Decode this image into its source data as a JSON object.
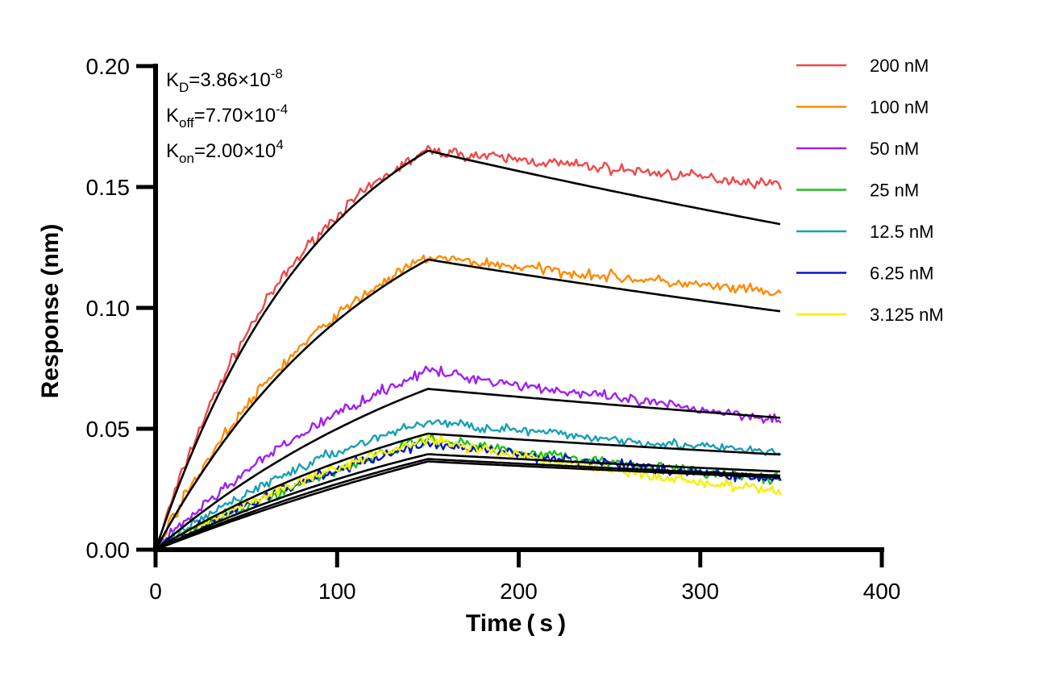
{
  "chart_data": {
    "type": "line",
    "xlabel": "Time ( s )",
    "ylabel": "Response (nm)",
    "xlim": [
      0,
      400
    ],
    "ylim": [
      0,
      0.2
    ],
    "x_ticks": [
      0,
      100,
      200,
      300,
      400
    ],
    "y_ticks": [
      0.0,
      0.05,
      0.1,
      0.15,
      0.2
    ],
    "x_tick_labels": [
      "0",
      "100",
      "200",
      "300",
      "400"
    ],
    "y_tick_labels": [
      "0.00",
      "0.05",
      "0.10",
      "0.15",
      "0.20"
    ],
    "legend_position": "top-right",
    "grid": false,
    "association_end_s": 150,
    "dissociation_end_s": 345,
    "annotations": [
      {
        "key": "KD",
        "base": "K",
        "sub": "D",
        "text": "=3.86×10",
        "sup": "-8"
      },
      {
        "key": "Koff",
        "base": "K",
        "sub": "off",
        "text": "=7.70×10",
        "sup": "-4"
      },
      {
        "key": "Kon",
        "base": "K",
        "sub": "on",
        "text": "=2.00×10",
        "sup": "4"
      }
    ],
    "fit_color": "#000000",
    "series": [
      {
        "name": "200 nM",
        "color": "#f04848",
        "end_association": 0.165,
        "end_dissociation": 0.151,
        "fit_peak": 0.165,
        "fit_end": 0.1345
      },
      {
        "name": "100 nM",
        "color": "#ff8a00",
        "end_association": 0.121,
        "end_dissociation": 0.106,
        "fit_peak": 0.12,
        "fit_end": 0.0985
      },
      {
        "name": "50 nM",
        "color": "#a020f0",
        "end_association": 0.074,
        "end_dissociation": 0.054,
        "fit_peak": 0.0665,
        "fit_end": 0.0545
      },
      {
        "name": "25 nM",
        "color": "#1ec01e",
        "end_association": 0.046,
        "end_dissociation": 0.029,
        "fit_peak": 0.0365,
        "fit_end": 0.0298
      },
      {
        "name": "12.5 nM",
        "color": "#1a9fb5",
        "end_association": 0.053,
        "end_dissociation": 0.04,
        "fit_peak": 0.048,
        "fit_end": 0.0393
      },
      {
        "name": "6.25 nM",
        "color": "#0a14c8",
        "end_association": 0.044,
        "end_dissociation": 0.029,
        "fit_peak": 0.0395,
        "fit_end": 0.0323
      },
      {
        "name": "3.125 nM",
        "color": "#f5f000",
        "end_association": 0.046,
        "end_dissociation": 0.024,
        "fit_peak": 0.0375,
        "fit_end": 0.0306
      }
    ]
  }
}
